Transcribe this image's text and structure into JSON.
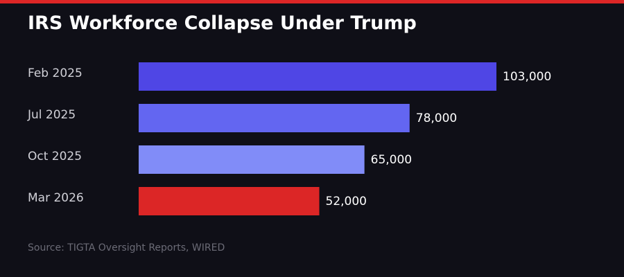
{
  "colors": {
    "background": "#0f0f17",
    "accent": "#dc2626",
    "category_label": "#d1d1d8",
    "value_label": "#ffffff",
    "source": "#6b6b76"
  },
  "chart_data": {
    "type": "bar",
    "orientation": "horizontal",
    "title": "IRS Workforce Collapse Under Trump",
    "xlabel": "",
    "ylabel": "",
    "categories": [
      "Feb 2025",
      "Jul 2025",
      "Oct 2025",
      "Mar 2026"
    ],
    "values": [
      103000,
      78000,
      65000,
      52000
    ],
    "value_labels": [
      "103,000",
      "78,000",
      "65,000",
      "52,000"
    ],
    "bar_colors": [
      "#4f46e5",
      "#6366f1",
      "#818cf8",
      "#dc2626"
    ],
    "xlim": [
      0,
      103000
    ],
    "grid": false,
    "legend": "none"
  },
  "source": "Source: TIGTA Oversight Reports, WIRED"
}
